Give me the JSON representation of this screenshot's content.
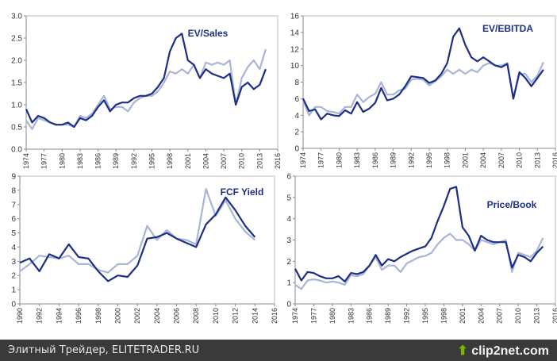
{
  "colors": {
    "primary": "#1c2f85",
    "secondary": "#a9b4d6",
    "footer_bg": "#3a3a3a"
  },
  "footer": {
    "text": "Элитный Трейдер, ELITETRADER.RU",
    "brand": "clip2net.com",
    "brand_icon": "upload-arrow-icon"
  },
  "chart_data": [
    {
      "type": "line",
      "title": "EV/Sales",
      "ylim": [
        0,
        3
      ],
      "yticks": [
        "0.0",
        "0.5",
        "1.0",
        "1.5",
        "2.0",
        "2.5",
        "3.0"
      ],
      "xlim": [
        1974,
        2016
      ],
      "xticks": [
        "1974",
        "1977",
        "1980",
        "1983",
        "1986",
        "1989",
        "1992",
        "1995",
        "1998",
        "2001",
        "2004",
        "2007",
        "2010",
        "2013",
        "2016"
      ],
      "x_start": 1974,
      "series": [
        {
          "name": "series-dark",
          "values": [
            0.9,
            0.6,
            0.75,
            0.7,
            0.6,
            0.55,
            0.55,
            0.6,
            0.5,
            0.7,
            0.65,
            0.75,
            0.95,
            1.1,
            0.85,
            1.0,
            1.05,
            1.05,
            1.15,
            1.2,
            1.2,
            1.25,
            1.4,
            1.6,
            2.2,
            2.5,
            2.6,
            2.0,
            1.9,
            1.6,
            1.8,
            1.7,
            1.65,
            1.6,
            1.7,
            1.0,
            1.4,
            1.5,
            1.35,
            1.45,
            1.8
          ]
        },
        {
          "name": "series-light",
          "values": [
            0.65,
            0.45,
            0.7,
            0.65,
            0.6,
            0.55,
            0.55,
            0.55,
            0.5,
            0.75,
            0.7,
            0.8,
            1.0,
            1.2,
            0.9,
            0.95,
            0.95,
            0.85,
            1.05,
            1.15,
            1.2,
            1.2,
            1.3,
            1.5,
            1.75,
            1.7,
            1.8,
            1.7,
            1.9,
            1.6,
            1.95,
            1.9,
            1.95,
            1.9,
            2.0,
            1.0,
            1.6,
            1.85,
            2.0,
            1.8,
            2.25
          ]
        }
      ]
    },
    {
      "type": "line",
      "title": "EV/EBITDA",
      "ylim": [
        0,
        16
      ],
      "yticks": [
        "0",
        "2",
        "4",
        "6",
        "8",
        "10",
        "12",
        "14",
        "16"
      ],
      "xlim": [
        1974,
        2016
      ],
      "xticks": [
        "1974",
        "1977",
        "1980",
        "1983",
        "1986",
        "1989",
        "1992",
        "1995",
        "1998",
        "2001",
        "2004",
        "2007",
        "2010",
        "2013",
        "2016"
      ],
      "x_start": 1974,
      "series": [
        {
          "name": "series-dark",
          "values": [
            6,
            4.5,
            4.7,
            3.5,
            4.2,
            4,
            3.9,
            4.6,
            4.2,
            5.6,
            4.4,
            4.8,
            5.5,
            7.3,
            5.8,
            6,
            6.5,
            7.5,
            8.7,
            8.6,
            8.5,
            7.9,
            8.2,
            9,
            10.3,
            13.5,
            14.5,
            12.5,
            11,
            10.5,
            11,
            10.5,
            10,
            9.8,
            10.2,
            6,
            9.2,
            8.5,
            7.5,
            8.5,
            9.5
          ]
        },
        {
          "name": "series-light",
          "values": [
            5.8,
            4,
            5,
            5,
            4.5,
            4.4,
            4.2,
            5,
            5,
            6.5,
            5.6,
            6.2,
            6.6,
            8,
            6.5,
            6.5,
            7,
            7.2,
            8.3,
            8.4,
            8.3,
            7.6,
            8.1,
            8.7,
            9.5,
            9,
            9.5,
            9,
            9.5,
            9.2,
            10,
            10.3,
            10,
            10,
            10.3,
            6,
            9,
            9,
            8,
            8.8,
            10.4
          ]
        }
      ]
    },
    {
      "type": "line",
      "title": "FCF Yield",
      "ylim": [
        0,
        9
      ],
      "yticks": [
        "0",
        "1",
        "2",
        "3",
        "4",
        "5",
        "6",
        "7",
        "8",
        "9"
      ],
      "xlim": [
        1990,
        2016
      ],
      "xticks": [
        "1990",
        "1992",
        "1994",
        "1996",
        "1998",
        "2000",
        "2002",
        "2004",
        "2006",
        "2008",
        "2010",
        "2012",
        "2014",
        "2016"
      ],
      "x_start": 1990,
      "series": [
        {
          "name": "series-dark",
          "values": [
            2.9,
            3.2,
            2.3,
            3.5,
            3.2,
            4.2,
            3.3,
            3.2,
            2.3,
            1.6,
            2,
            1.9,
            2.7,
            4.6,
            4.7,
            5.0,
            4.6,
            4.3,
            4.0,
            5.6,
            6.3,
            7.5,
            6.6,
            5.5,
            4.7
          ]
        },
        {
          "name": "series-light",
          "values": [
            2.3,
            2.8,
            3.4,
            3.3,
            3.2,
            3.4,
            2.8,
            2.8,
            2.4,
            2.2,
            2.8,
            2.8,
            3.4,
            5.5,
            4.5,
            5.2,
            4.6,
            4.5,
            4.2,
            8.1,
            6.2,
            7.3,
            6.0,
            5.1,
            4.5
          ]
        }
      ]
    },
    {
      "type": "line",
      "title": "Price/Book",
      "ylim": [
        0,
        6
      ],
      "yticks": [
        "0",
        "1",
        "2",
        "3",
        "4",
        "5",
        "6"
      ],
      "xlim": [
        1974,
        2016
      ],
      "xticks": [
        "1974",
        "1977",
        "1980",
        "1983",
        "1986",
        "1989",
        "1992",
        "1995",
        "1998",
        "2001",
        "2004",
        "2007",
        "2010",
        "2013",
        "2016"
      ],
      "x_start": 1974,
      "series": [
        {
          "name": "series-dark",
          "values": [
            1.65,
            1.1,
            1.5,
            1.45,
            1.3,
            1.2,
            1.2,
            1.3,
            1.05,
            1.45,
            1.4,
            1.5,
            1.8,
            2.3,
            1.8,
            2.1,
            2.0,
            2.2,
            2.35,
            2.5,
            2.6,
            2.7,
            3.1,
            3.9,
            4.6,
            5.4,
            5.5,
            3.6,
            3.2,
            2.5,
            3.2,
            3.0,
            2.9,
            2.9,
            2.9,
            1.7,
            2.3,
            2.2,
            2.0,
            2.4,
            2.7
          ]
        },
        {
          "name": "series-light",
          "values": [
            0.9,
            0.7,
            1.1,
            1.15,
            1.1,
            1.0,
            1.05,
            1.0,
            0.9,
            1.35,
            1.3,
            1.4,
            1.8,
            2.2,
            1.6,
            1.8,
            1.8,
            1.5,
            1.9,
            2.05,
            2.2,
            2.25,
            2.4,
            2.8,
            3.1,
            3.3,
            3.0,
            3.0,
            2.8,
            2.5,
            3.0,
            2.9,
            2.8,
            2.9,
            3.0,
            1.5,
            2.4,
            2.3,
            2.2,
            2.5,
            3.1
          ]
        }
      ]
    }
  ]
}
